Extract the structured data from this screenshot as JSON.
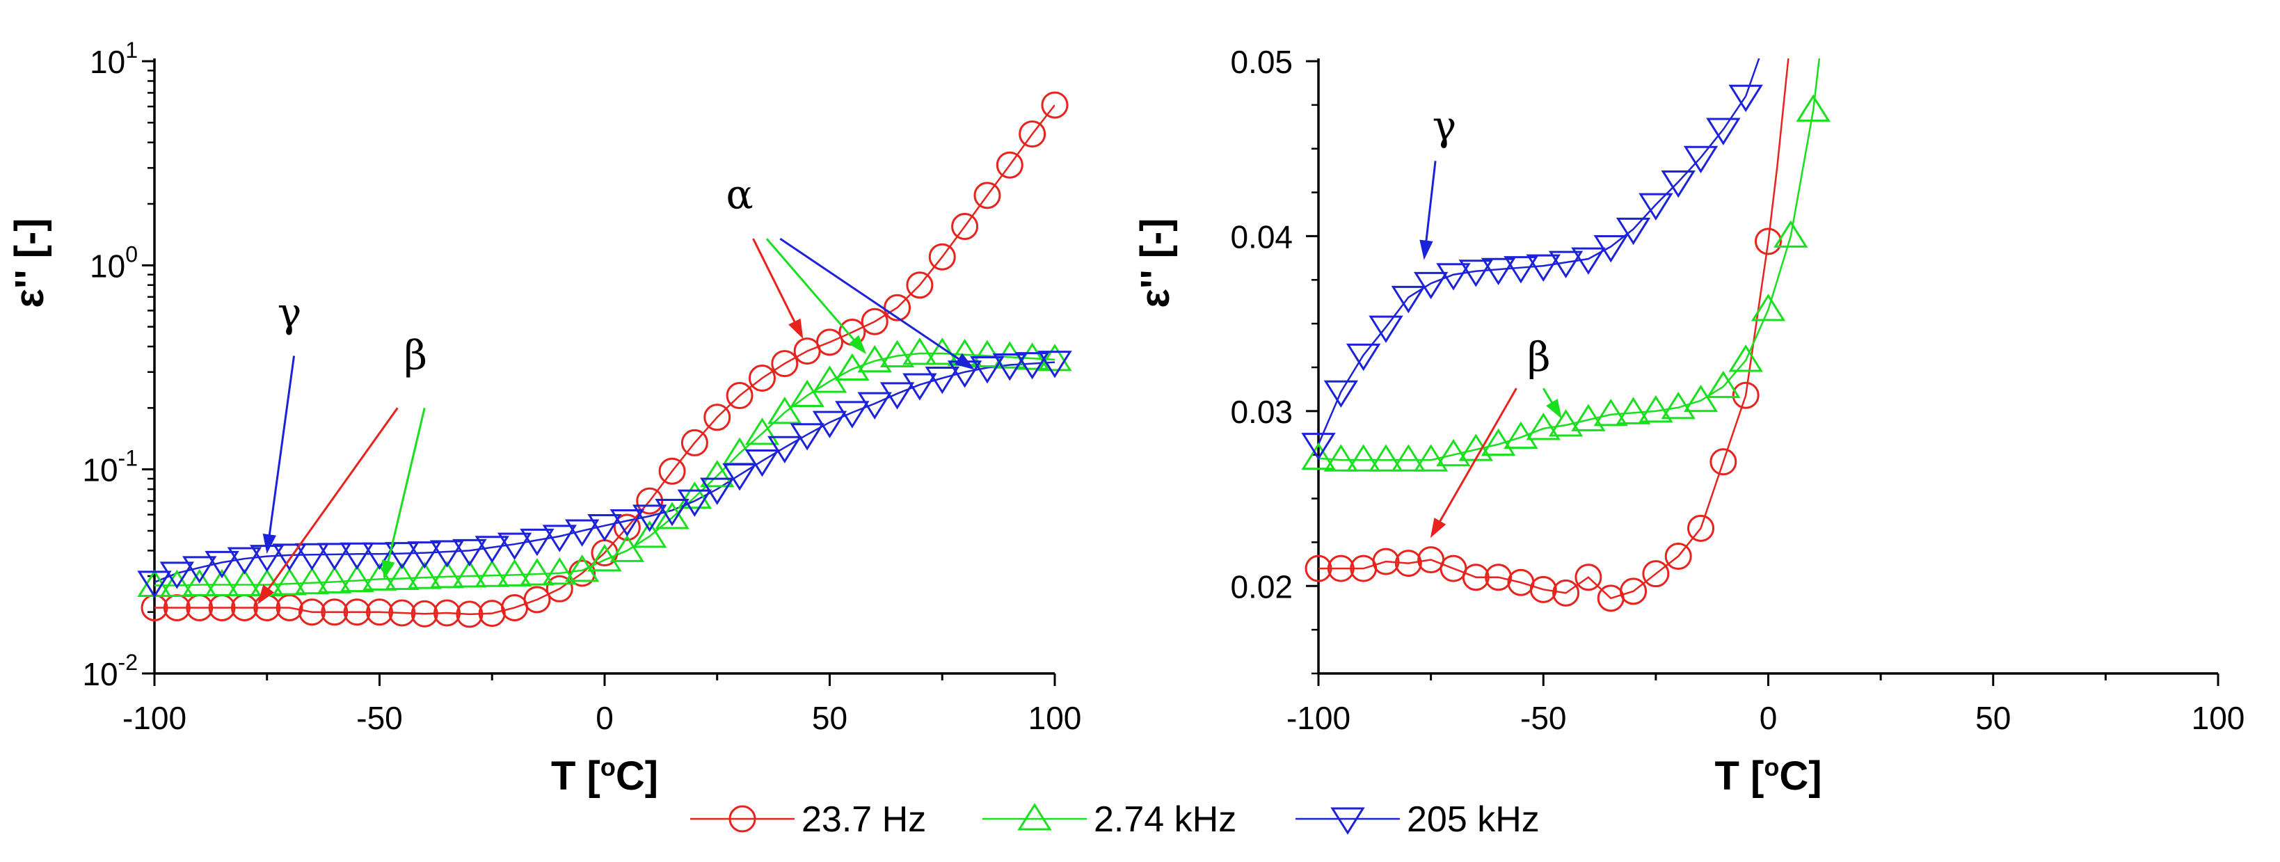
{
  "chart_data": [
    {
      "id": "left",
      "type": "line",
      "yscale": "log",
      "xlabel": "T [oC]",
      "ylabel": "ε'' [-]",
      "xlim": [
        -100,
        100
      ],
      "ylim": [
        0.01,
        10
      ],
      "xticks": [
        -100,
        -50,
        0,
        50,
        100
      ],
      "yticks": [
        {
          "value": 0.01,
          "base": "10",
          "exp": "-2"
        },
        {
          "value": 0.1,
          "base": "10",
          "exp": "-1"
        },
        {
          "value": 1,
          "base": "10",
          "exp": "0"
        },
        {
          "value": 10,
          "base": "10",
          "exp": "1"
        }
      ],
      "series": [
        {
          "name": "23.7 Hz",
          "marker": "circle",
          "color": "#e8221c",
          "points": [
            [
              -100,
              0.021
            ],
            [
              -95,
              0.021
            ],
            [
              -90,
              0.021
            ],
            [
              -85,
              0.021
            ],
            [
              -80,
              0.021
            ],
            [
              -75,
              0.021
            ],
            [
              -70,
              0.021
            ],
            [
              -65,
              0.02
            ],
            [
              -60,
              0.02
            ],
            [
              -55,
              0.02
            ],
            [
              -50,
              0.02
            ],
            [
              -45,
              0.0198
            ],
            [
              -40,
              0.0196
            ],
            [
              -35,
              0.0198
            ],
            [
              -30,
              0.0195
            ],
            [
              -25,
              0.0197
            ],
            [
              -20,
              0.021
            ],
            [
              -15,
              0.023
            ],
            [
              -10,
              0.026
            ],
            [
              -5,
              0.031
            ],
            [
              0,
              0.039
            ],
            [
              5,
              0.052
            ],
            [
              10,
              0.07
            ],
            [
              15,
              0.098
            ],
            [
              20,
              0.135
            ],
            [
              25,
              0.18
            ],
            [
              30,
              0.23
            ],
            [
              35,
              0.28
            ],
            [
              40,
              0.33
            ],
            [
              45,
              0.38
            ],
            [
              50,
              0.42
            ],
            [
              55,
              0.47
            ],
            [
              60,
              0.53
            ],
            [
              65,
              0.62
            ],
            [
              70,
              0.8
            ],
            [
              75,
              1.1
            ],
            [
              80,
              1.55
            ],
            [
              85,
              2.2
            ],
            [
              90,
              3.1
            ],
            [
              95,
              4.4
            ],
            [
              100,
              6.1
            ]
          ]
        },
        {
          "name": "2.74 kHz",
          "marker": "triangle-up",
          "color": "#19e01c",
          "points": [
            [
              -100,
              0.027
            ],
            [
              -95,
              0.027
            ],
            [
              -90,
              0.0272
            ],
            [
              -85,
              0.0272
            ],
            [
              -80,
              0.0272
            ],
            [
              -75,
              0.0272
            ],
            [
              -70,
              0.0275
            ],
            [
              -65,
              0.0278
            ],
            [
              -60,
              0.0281
            ],
            [
              -55,
              0.0285
            ],
            [
              -50,
              0.029
            ],
            [
              -45,
              0.0292
            ],
            [
              -40,
              0.0295
            ],
            [
              -35,
              0.0298
            ],
            [
              -30,
              0.03
            ],
            [
              -25,
              0.0302
            ],
            [
              -20,
              0.0304
            ],
            [
              -15,
              0.0307
            ],
            [
              -10,
              0.031
            ],
            [
              -5,
              0.032
            ],
            [
              0,
              0.036
            ],
            [
              5,
              0.04
            ],
            [
              10,
              0.047
            ],
            [
              15,
              0.058
            ],
            [
              20,
              0.073
            ],
            [
              25,
              0.093
            ],
            [
              30,
              0.12
            ],
            [
              35,
              0.15
            ],
            [
              40,
              0.19
            ],
            [
              45,
              0.23
            ],
            [
              50,
              0.27
            ],
            [
              55,
              0.31
            ],
            [
              60,
              0.34
            ],
            [
              65,
              0.36
            ],
            [
              70,
              0.37
            ],
            [
              75,
              0.37
            ],
            [
              80,
              0.365
            ],
            [
              85,
              0.36
            ],
            [
              90,
              0.355
            ],
            [
              95,
              0.35
            ],
            [
              100,
              0.345
            ]
          ]
        },
        {
          "name": "205 kHz",
          "marker": "triangle-down",
          "color": "#1c22d8",
          "points": [
            [
              -100,
              0.028
            ],
            [
              -95,
              0.031
            ],
            [
              -90,
              0.033
            ],
            [
              -85,
              0.035
            ],
            [
              -80,
              0.0365
            ],
            [
              -75,
              0.0375
            ],
            [
              -70,
              0.038
            ],
            [
              -65,
              0.0382
            ],
            [
              -60,
              0.0383
            ],
            [
              -55,
              0.0385
            ],
            [
              -50,
              0.0385
            ],
            [
              -45,
              0.0387
            ],
            [
              -40,
              0.039
            ],
            [
              -35,
              0.0395
            ],
            [
              -30,
              0.04
            ],
            [
              -25,
              0.0415
            ],
            [
              -20,
              0.043
            ],
            [
              -15,
              0.045
            ],
            [
              -10,
              0.047
            ],
            [
              -5,
              0.05
            ],
            [
              0,
              0.053
            ],
            [
              5,
              0.056
            ],
            [
              10,
              0.059
            ],
            [
              15,
              0.063
            ],
            [
              20,
              0.07
            ],
            [
              25,
              0.08
            ],
            [
              30,
              0.094
            ],
            [
              35,
              0.11
            ],
            [
              40,
              0.128
            ],
            [
              45,
              0.148
            ],
            [
              50,
              0.17
            ],
            [
              55,
              0.19
            ],
            [
              60,
              0.21
            ],
            [
              65,
              0.235
            ],
            [
              70,
              0.26
            ],
            [
              75,
              0.28
            ],
            [
              80,
              0.3
            ],
            [
              85,
              0.315
            ],
            [
              90,
              0.325
            ],
            [
              95,
              0.33
            ],
            [
              100,
              0.335
            ]
          ]
        }
      ],
      "annotations": [
        {
          "label": "α",
          "color": "#e8221c",
          "text_x": 30,
          "text_y": 1.9,
          "from": [
            33,
            1.35
          ],
          "to": [
            44,
            0.44
          ]
        },
        {
          "label": "",
          "color": "#19e01c",
          "from": [
            36,
            1.35
          ],
          "to": [
            58,
            0.37
          ]
        },
        {
          "label": "",
          "color": "#1c22d8",
          "from": [
            39,
            1.35
          ],
          "to": [
            82,
            0.31
          ]
        },
        {
          "label": "γ",
          "color": "#000000",
          "text_x": -70,
          "text_y": 0.5,
          "from": [
            -69,
            0.36
          ],
          "to": [
            -75,
            0.039
          ]
        },
        {
          "label": "",
          "color": "#1c22d8",
          "from": [
            -69,
            0.36
          ],
          "to": [
            -75,
            0.039
          ]
        },
        {
          "label": "β",
          "color": "#000000",
          "text_x": -42,
          "text_y": 0.31,
          "from": [
            -46,
            0.2
          ],
          "to": [
            -77,
            0.022
          ]
        },
        {
          "label": "",
          "color": "#e8221c",
          "from": [
            -46,
            0.2
          ],
          "to": [
            -77,
            0.022
          ]
        },
        {
          "label": "",
          "color": "#19e01c",
          "from": [
            -40,
            0.2
          ],
          "to": [
            -49,
            0.029
          ]
        }
      ]
    },
    {
      "id": "right",
      "type": "line",
      "yscale": "linear",
      "xlabel": "T [oC]",
      "ylabel": "ε'' [-]",
      "xlim": [
        -100,
        100
      ],
      "ylim": [
        0.015,
        0.05
      ],
      "xticks": [
        -100,
        -50,
        0,
        50,
        100
      ],
      "yticks": [
        {
          "value": 0.02,
          "label": "0.02"
        },
        {
          "value": 0.03,
          "label": "0.03"
        },
        {
          "value": 0.04,
          "label": "0.04"
        },
        {
          "value": 0.05,
          "label": "0.05"
        }
      ],
      "series": [
        {
          "name": "23.7 Hz",
          "marker": "circle",
          "color": "#e8221c",
          "points": [
            [
              -100,
              0.021
            ],
            [
              -95,
              0.021
            ],
            [
              -90,
              0.021
            ],
            [
              -85,
              0.0214
            ],
            [
              -80,
              0.0213
            ],
            [
              -75,
              0.0215
            ],
            [
              -70,
              0.021
            ],
            [
              -65,
              0.0205
            ],
            [
              -60,
              0.0205
            ],
            [
              -55,
              0.0202
            ],
            [
              -50,
              0.0198
            ],
            [
              -45,
              0.0196
            ],
            [
              -40,
              0.0205
            ],
            [
              -35,
              0.0193
            ],
            [
              -30,
              0.0197
            ],
            [
              -25,
              0.0207
            ],
            [
              -20,
              0.0217
            ],
            [
              -15,
              0.0233
            ],
            [
              -10,
              0.0271
            ],
            [
              -5,
              0.0309
            ],
            [
              0,
              0.0397
            ]
          ],
          "tail": [
            [
              0,
              0.0397
            ],
            [
              2,
              0.044
            ],
            [
              4,
              0.049
            ],
            [
              4.6,
              0.0505
            ]
          ]
        },
        {
          "name": "2.74 kHz",
          "marker": "triangle-up",
          "color": "#19e01c",
          "points": [
            [
              -100,
              0.0273
            ],
            [
              -95,
              0.0272
            ],
            [
              -90,
              0.0272
            ],
            [
              -85,
              0.0272
            ],
            [
              -80,
              0.0272
            ],
            [
              -75,
              0.0272
            ],
            [
              -70,
              0.0275
            ],
            [
              -65,
              0.0278
            ],
            [
              -60,
              0.0281
            ],
            [
              -55,
              0.0285
            ],
            [
              -50,
              0.029
            ],
            [
              -45,
              0.0292
            ],
            [
              -40,
              0.0295
            ],
            [
              -35,
              0.0298
            ],
            [
              -30,
              0.0299
            ],
            [
              -25,
              0.03
            ],
            [
              -20,
              0.0302
            ],
            [
              -15,
              0.0306
            ],
            [
              -10,
              0.0314
            ],
            [
              -5,
              0.0329
            ],
            [
              0,
              0.0358
            ],
            [
              5,
              0.04
            ],
            [
              10,
              0.0472
            ]
          ],
          "tail": [
            [
              10,
              0.0472
            ],
            [
              11.5,
              0.0505
            ]
          ]
        },
        {
          "name": "205 kHz",
          "marker": "triangle-down",
          "color": "#1c22d8",
          "points": [
            [
              -100,
              0.0281
            ],
            [
              -95,
              0.0311
            ],
            [
              -90,
              0.0332
            ],
            [
              -85,
              0.0348
            ],
            [
              -80,
              0.0365
            ],
            [
              -75,
              0.0373
            ],
            [
              -70,
              0.0378
            ],
            [
              -65,
              0.038
            ],
            [
              -60,
              0.0381
            ],
            [
              -55,
              0.0382
            ],
            [
              -50,
              0.0383
            ],
            [
              -45,
              0.0385
            ],
            [
              -40,
              0.0387
            ],
            [
              -35,
              0.0394
            ],
            [
              -30,
              0.0404
            ],
            [
              -25,
              0.0418
            ],
            [
              -20,
              0.0431
            ],
            [
              -15,
              0.0445
            ],
            [
              -10,
              0.0461
            ],
            [
              -5,
              0.048
            ]
          ],
          "tail": [
            [
              -5,
              0.048
            ],
            [
              -2,
              0.0502
            ]
          ]
        }
      ],
      "annotations": [
        {
          "label": "γ",
          "color": "#000000",
          "text_x": -72,
          "text_y": 0.0455,
          "from": [
            -74,
            0.0443
          ],
          "to": [
            -76.5,
            0.0387
          ]
        },
        {
          "label": "",
          "color": "#1c22d8",
          "from": [
            -74,
            0.0443
          ],
          "to": [
            -76.5,
            0.0387
          ]
        },
        {
          "label": "β",
          "color": "#000000",
          "text_x": -51,
          "text_y": 0.0323,
          "from": [
            -56,
            0.0313
          ],
          "to": [
            -75,
            0.0228
          ]
        },
        {
          "label": "",
          "color": "#e8221c",
          "from": [
            -56,
            0.0313
          ],
          "to": [
            -75,
            0.0228
          ]
        },
        {
          "label": "",
          "color": "#19e01c",
          "from": [
            -50,
            0.0313
          ],
          "to": [
            -46,
            0.0296
          ]
        }
      ]
    }
  ],
  "legend": {
    "position": "bottom-center",
    "items": [
      {
        "label": "23.7 Hz",
        "marker": "circle",
        "color": "#e8221c"
      },
      {
        "label": "2.74 kHz",
        "marker": "triangle-up",
        "color": "#19e01c"
      },
      {
        "label": "205 kHz",
        "marker": "triangle-down",
        "color": "#1c22d8"
      }
    ]
  }
}
